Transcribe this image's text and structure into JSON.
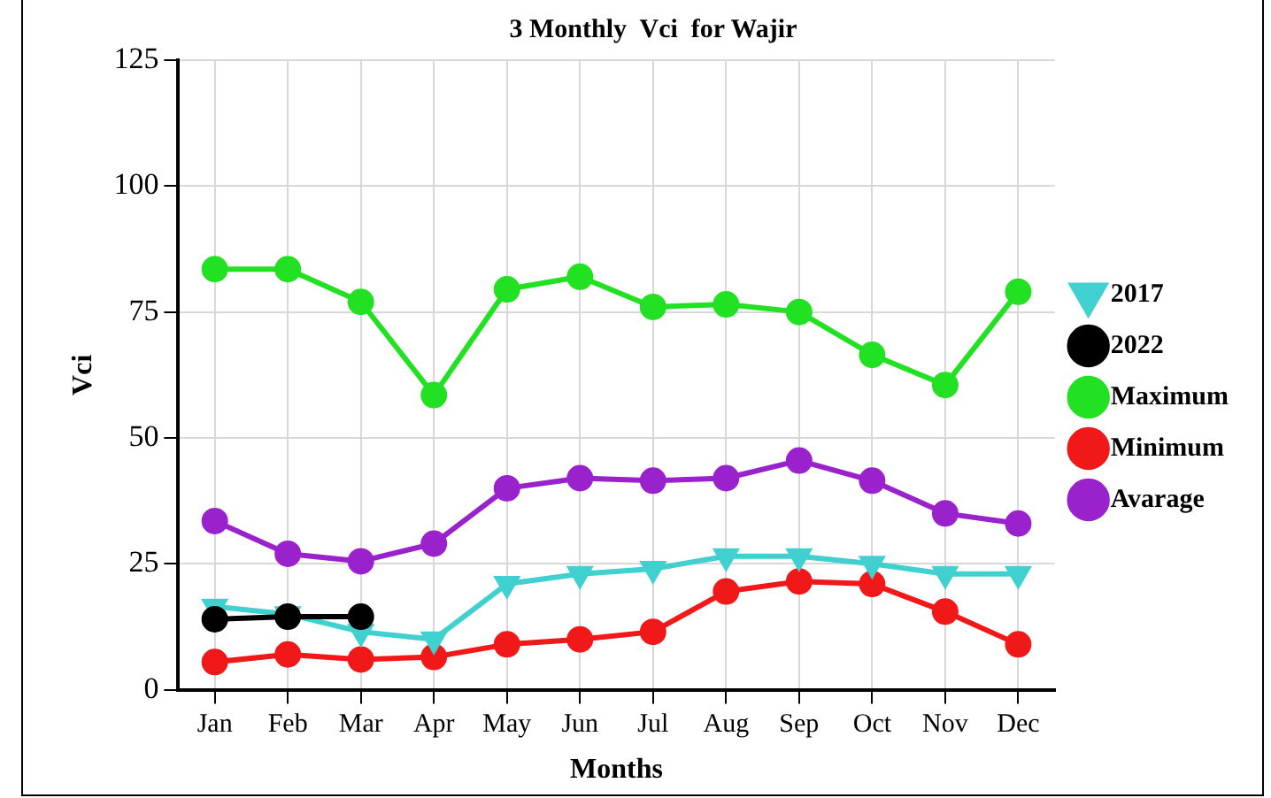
{
  "chart_data": {
    "type": "line",
    "title": "3 Monthly  Vci  for Wajir",
    "xlabel": "Months",
    "ylabel": "Vci",
    "categories": [
      "Jan",
      "Feb",
      "Mar",
      "Apr",
      "May",
      "Jun",
      "Jul",
      "Aug",
      "Sep",
      "Oct",
      "Nov",
      "Dec"
    ],
    "series": [
      {
        "name": "2017",
        "color": "#40d0d0",
        "marker": "triangle",
        "values": [
          16.5,
          15,
          11.5,
          10,
          21,
          23,
          24,
          26.5,
          26.5,
          25,
          23,
          23
        ]
      },
      {
        "name": "2022",
        "color": "#000000",
        "marker": "circle",
        "values": [
          14,
          14.5,
          14.5,
          null,
          null,
          null,
          null,
          null,
          null,
          null,
          null,
          null
        ]
      },
      {
        "name": "Maximum",
        "color": "#22e022",
        "marker": "circle",
        "values": [
          83.5,
          83.5,
          77,
          58.5,
          79.5,
          82,
          76,
          76.5,
          75,
          66.5,
          60.5,
          79
        ]
      },
      {
        "name": "Minimum",
        "color": "#f01818",
        "marker": "circle",
        "values": [
          5.5,
          7,
          6,
          6.5,
          9,
          10,
          11.5,
          19.5,
          21.5,
          21,
          15.5,
          9
        ]
      },
      {
        "name": "Avarage",
        "color": "#9a22cc",
        "marker": "circle",
        "values": [
          33.5,
          27,
          25.5,
          29,
          40,
          42,
          41.5,
          42,
          45.5,
          41.5,
          35,
          33
        ]
      }
    ],
    "ylim": [
      0,
      125
    ],
    "yticks": [
      0,
      25,
      50,
      75,
      100,
      125
    ],
    "grid": true,
    "legend": "right",
    "line_style": "solid"
  }
}
